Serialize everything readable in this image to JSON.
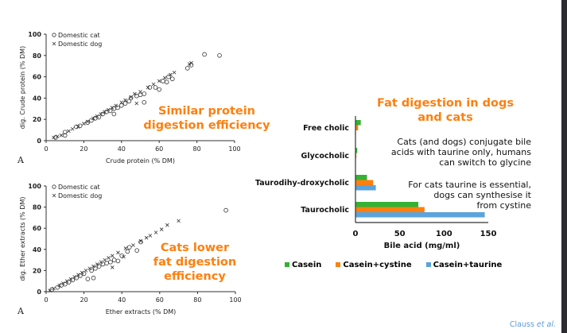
{
  "chart_data": [
    {
      "type": "scatter",
      "xlabel": "Crude protein (% DM)",
      "ylabel": "dig. Crude protein (% DM)",
      "xlim": [
        0,
        100
      ],
      "ylim": [
        0,
        100
      ],
      "xticks": [
        "0",
        "20",
        "40",
        "60",
        "80",
        "100"
      ],
      "yticks": [
        "0",
        "20",
        "40",
        "60",
        "80",
        "100"
      ],
      "panel_label": "A",
      "legend_position": "top-left",
      "series": [
        {
          "name": "Domestic cat",
          "marker": "circle",
          "points": [
            [
              5,
              3
            ],
            [
              10,
              5
            ],
            [
              10,
              8
            ],
            [
              16,
              13
            ],
            [
              18,
              14
            ],
            [
              22,
              17
            ],
            [
              24,
              19
            ],
            [
              26,
              21
            ],
            [
              28,
              22
            ],
            [
              30,
              25
            ],
            [
              32,
              27
            ],
            [
              34,
              28
            ],
            [
              36,
              30
            ],
            [
              36,
              25
            ],
            [
              38,
              31
            ],
            [
              40,
              33
            ],
            [
              42,
              35
            ],
            [
              44,
              37
            ],
            [
              45,
              40
            ],
            [
              48,
              42
            ],
            [
              50,
              43
            ],
            [
              52,
              36
            ],
            [
              52,
              44
            ],
            [
              55,
              50
            ],
            [
              58,
              50
            ],
            [
              60,
              48
            ],
            [
              62,
              56
            ],
            [
              64,
              55
            ],
            [
              65,
              60
            ],
            [
              67,
              58
            ],
            [
              75,
              68
            ],
            [
              77,
              71
            ],
            [
              84,
              81
            ],
            [
              92,
              80
            ]
          ]
        },
        {
          "name": "Domestic dog",
          "marker": "x",
          "points": [
            [
              4,
              3
            ],
            [
              6,
              4
            ],
            [
              8,
              5
            ],
            [
              12,
              9
            ],
            [
              14,
              11
            ],
            [
              17,
              13
            ],
            [
              20,
              16
            ],
            [
              22,
              18
            ],
            [
              25,
              21
            ],
            [
              27,
              23
            ],
            [
              29,
              25
            ],
            [
              31,
              27
            ],
            [
              33,
              29
            ],
            [
              35,
              31
            ],
            [
              37,
              33
            ],
            [
              40,
              36
            ],
            [
              42,
              38
            ],
            [
              45,
              41
            ],
            [
              47,
              44
            ],
            [
              48,
              35
            ],
            [
              50,
              46
            ],
            [
              54,
              50
            ],
            [
              57,
              53
            ],
            [
              60,
              56
            ],
            [
              63,
              59
            ],
            [
              66,
              62
            ],
            [
              68,
              64
            ],
            [
              76,
              72
            ],
            [
              77,
              73
            ]
          ]
        }
      ]
    },
    {
      "type": "scatter",
      "xlabel": "Ether extracts (% DM)",
      "ylabel": "dig. Ether extracts (% DM)",
      "xlim": [
        0,
        100
      ],
      "ylim": [
        0,
        100
      ],
      "xticks": [
        "0",
        "20",
        "40",
        "60",
        "80",
        "100"
      ],
      "yticks": [
        "0",
        "20",
        "40",
        "60",
        "80",
        "100"
      ],
      "panel_label": "A",
      "legend_position": "top-left",
      "series": [
        {
          "name": "Domestic cat",
          "marker": "circle",
          "points": [
            [
              3,
              2
            ],
            [
              6,
              4
            ],
            [
              8,
              6
            ],
            [
              10,
              7
            ],
            [
              12,
              9
            ],
            [
              14,
              11
            ],
            [
              16,
              13
            ],
            [
              18,
              15
            ],
            [
              20,
              17
            ],
            [
              22,
              12
            ],
            [
              24,
              20
            ],
            [
              25,
              13
            ],
            [
              26,
              22
            ],
            [
              28,
              24
            ],
            [
              30,
              26
            ],
            [
              32,
              27
            ],
            [
              34,
              28
            ],
            [
              36,
              30
            ],
            [
              38,
              29
            ],
            [
              40,
              34
            ],
            [
              43,
              38
            ],
            [
              44,
              42
            ],
            [
              48,
              39
            ],
            [
              50,
              47
            ],
            [
              95,
              77
            ]
          ]
        },
        {
          "name": "Domestic dog",
          "marker": "x",
          "points": [
            [
              2,
              1
            ],
            [
              4,
              3
            ],
            [
              7,
              6
            ],
            [
              9,
              8
            ],
            [
              11,
              10
            ],
            [
              13,
              12
            ],
            [
              15,
              14
            ],
            [
              17,
              16
            ],
            [
              19,
              18
            ],
            [
              21,
              20
            ],
            [
              23,
              22
            ],
            [
              25,
              24
            ],
            [
              27,
              26
            ],
            [
              29,
              28
            ],
            [
              31,
              30
            ],
            [
              33,
              32
            ],
            [
              35,
              23
            ],
            [
              35,
              34
            ],
            [
              38,
              37
            ],
            [
              41,
              33
            ],
            [
              42,
              41
            ],
            [
              46,
              44
            ],
            [
              50,
              48
            ],
            [
              53,
              51
            ],
            [
              55,
              53
            ],
            [
              58,
              56
            ],
            [
              61,
              59
            ],
            [
              64,
              63
            ],
            [
              70,
              67
            ]
          ]
        }
      ]
    },
    {
      "type": "bar",
      "orientation": "horizontal",
      "xlabel": "Bile acid (mg/ml)",
      "xlim": [
        0,
        150
      ],
      "xticks": [
        "0",
        "50",
        "100",
        "150"
      ],
      "categories": [
        "Free cholic",
        "Glycocholic",
        "Taurodihy-droxycholic",
        "Taurocholic"
      ],
      "legend_position": "bottom",
      "series": [
        {
          "name": "Casein",
          "color": "#33b233",
          "values": [
            6,
            2,
            13,
            71
          ]
        },
        {
          "name": "Casein+cystine",
          "color": "#ff7f0e",
          "values": [
            3,
            1,
            20,
            78
          ]
        },
        {
          "name": "Casein+taurine",
          "color": "#5ba3dc",
          "values": [
            0.5,
            0.3,
            23,
            146
          ]
        }
      ]
    }
  ],
  "annotations": {
    "protein": [
      "Similar protein",
      "digestion efficiency"
    ],
    "fat": [
      "Cats lower",
      "fat digestion",
      "efficiency"
    ],
    "bar_title": [
      "Fat digestion in dogs",
      "and cats"
    ],
    "note1": [
      "Cats (and dogs) conjugate bile",
      "acids with taurine only, humans",
      "can switch to glycine"
    ],
    "note2": [
      "For cats taurine is essential,",
      "dogs can synthesise it",
      "from cystine"
    ]
  },
  "credit": {
    "author": "Clauss",
    "etal": "et al."
  },
  "colors": {
    "accent": "#ff7f0e",
    "credit": "#5b9bd5"
  }
}
